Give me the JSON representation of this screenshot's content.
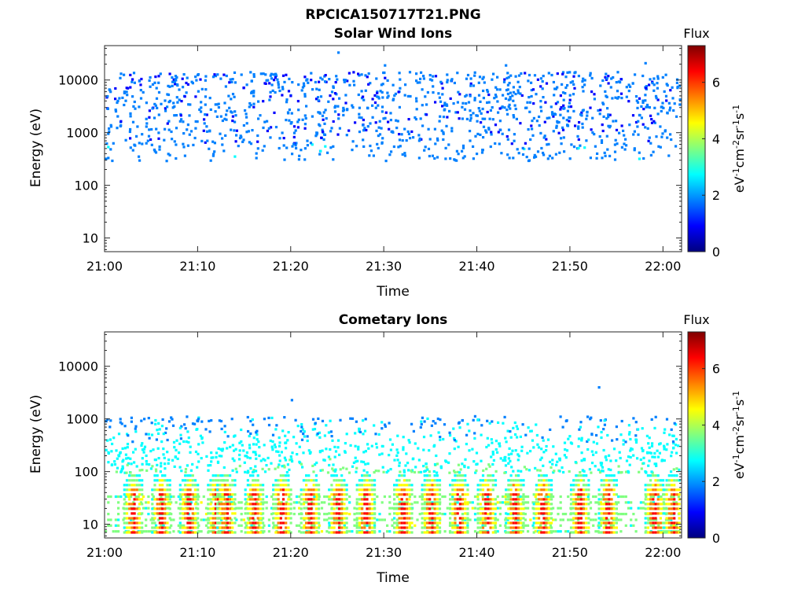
{
  "figure": {
    "title": "RPCICA150717T21.PNG"
  },
  "chart_data": [
    {
      "type": "heatmap",
      "title": "Solar Wind Ions",
      "xlabel": "Time",
      "ylabel": "Energy (eV)",
      "x_ticks": [
        "21:00",
        "21:10",
        "21:20",
        "21:30",
        "21:40",
        "21:50",
        "22:00"
      ],
      "y_ticks": [
        "10",
        "100",
        "1000",
        "10000"
      ],
      "y_scale": "log",
      "xlim": [
        "21:00",
        "22:02"
      ],
      "ylim": [
        5.5,
        45000
      ],
      "colorbar": {
        "label": "Flux",
        "units": "eV-1cm-2sr-1s-1",
        "ticks": [
          "0",
          "2",
          "4",
          "6"
        ],
        "range": [
          0,
          7.3
        ]
      },
      "colormap": [
        "#00007f",
        "#0000ff",
        "#0080ff",
        "#00ffff",
        "#80ff80",
        "#ffff00",
        "#ff8000",
        "#ff0000",
        "#7f0000"
      ],
      "dominant_population": {
        "energy_range_eV": [
          300,
          15000
        ],
        "flux_level": 1.5,
        "time_range": [
          "21:00",
          "22:02"
        ]
      },
      "outliers": [
        {
          "time": "21:25",
          "energy_eV": 35000,
          "flux": 1.5
        },
        {
          "time": "21:30",
          "energy_eV": 20000,
          "flux": 1.5
        },
        {
          "time": "21:43",
          "energy_eV": 20000,
          "flux": 1.5
        },
        {
          "time": "21:58",
          "energy_eV": 22000,
          "flux": 1.5
        }
      ]
    },
    {
      "type": "heatmap",
      "title": "Cometary Ions",
      "xlabel": "Time",
      "ylabel": "Energy (eV)",
      "x_ticks": [
        "21:00",
        "21:10",
        "21:20",
        "21:30",
        "21:40",
        "21:50",
        "22:00"
      ],
      "y_ticks": [
        "10",
        "100",
        "1000",
        "10000"
      ],
      "y_scale": "log",
      "xlim": [
        "21:00",
        "22:02"
      ],
      "ylim": [
        5.5,
        45000
      ],
      "colorbar": {
        "label": "Flux",
        "units": "eV-1cm-2sr-1s-1",
        "ticks": [
          "0",
          "2",
          "4",
          "6"
        ],
        "range": [
          0,
          7.3
        ]
      },
      "colormap": [
        "#00007f",
        "#0000ff",
        "#0080ff",
        "#00ffff",
        "#80ff80",
        "#ffff00",
        "#ff8000",
        "#ff0000",
        "#7f0000"
      ],
      "background_population": {
        "energy_range_eV": [
          100,
          1200
        ],
        "flux_level": 2.0,
        "time_range": [
          "21:00",
          "22:02"
        ]
      },
      "burst_times": [
        "21:03",
        "21:06",
        "21:09",
        "21:12",
        "21:13",
        "21:16",
        "21:19",
        "21:22",
        "21:25",
        "21:28",
        "21:32",
        "21:35",
        "21:38",
        "21:41",
        "21:44",
        "21:47",
        "21:51",
        "21:54",
        "21:59",
        "22:01"
      ],
      "burst_energy_eV": [
        6,
        40
      ],
      "burst_peak_flux": 7,
      "outliers": [
        {
          "time": "21:20",
          "energy_eV": 2400,
          "flux": 1.5
        },
        {
          "time": "21:53",
          "energy_eV": 4200,
          "flux": 1.5
        }
      ]
    }
  ]
}
